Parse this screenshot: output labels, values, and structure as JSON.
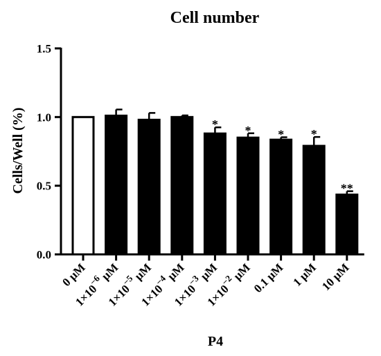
{
  "chart_data": {
    "type": "bar",
    "title": "Cell number",
    "xlabel": "P4",
    "ylabel": "Cells/Well (%)",
    "ylim": [
      0,
      1.5
    ],
    "yticks": [
      "0.0",
      "0.5",
      "1.0",
      "1.5"
    ],
    "grid": false,
    "categories": [
      {
        "base": "0 μM",
        "exp": "",
        "unit": ""
      },
      {
        "base": "1×10",
        "exp": "−6",
        "unit": " μM"
      },
      {
        "base": "1×10",
        "exp": "−5",
        "unit": " μM"
      },
      {
        "base": "1×10",
        "exp": "−4",
        "unit": " μM"
      },
      {
        "base": "1×10",
        "exp": "−3",
        "unit": " μM"
      },
      {
        "base": "1×10",
        "exp": "−2",
        "unit": " μM"
      },
      {
        "base": "0.1 μM",
        "exp": "",
        "unit": ""
      },
      {
        "base": "1 μM",
        "exp": "",
        "unit": ""
      },
      {
        "base": "10 μM",
        "exp": "",
        "unit": ""
      }
    ],
    "values": [
      1.0,
      1.01,
      0.98,
      1.0,
      0.88,
      0.85,
      0.835,
      0.79,
      0.435
    ],
    "errors": [
      0.0,
      0.045,
      0.05,
      0.012,
      0.045,
      0.032,
      0.018,
      0.065,
      0.025
    ],
    "significance": [
      "",
      "",
      "",
      "",
      "*",
      "*",
      "*",
      "*",
      "**"
    ],
    "bar_fill": [
      "#ffffff",
      "#000000",
      "#000000",
      "#000000",
      "#000000",
      "#000000",
      "#000000",
      "#000000",
      "#000000"
    ]
  }
}
